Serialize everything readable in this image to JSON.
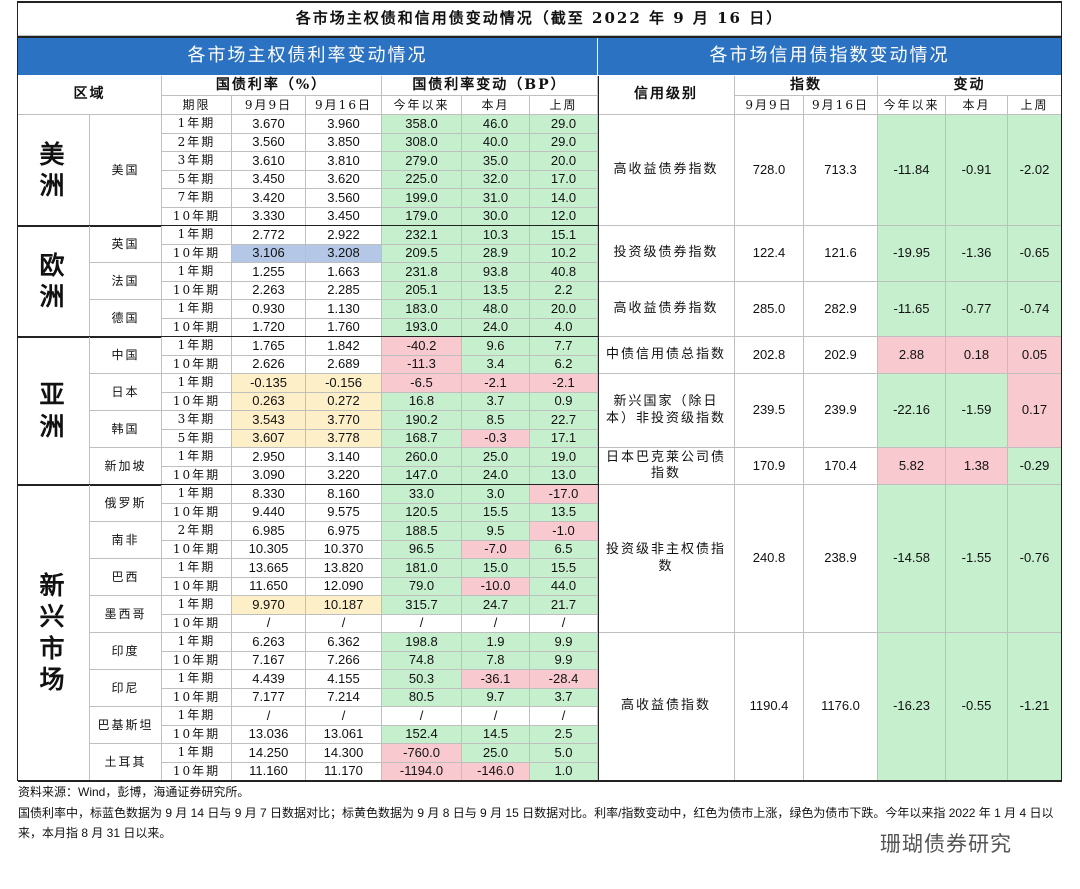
{
  "title": "各市场主权债和信用债变动情况（截至 2022 年 9 月 16 日）",
  "sovereign": {
    "header": "各市场主权债利率变动情况",
    "columns": {
      "region": "区域",
      "rate_group": "国债利率（%）",
      "change_group": "国债利率变动（BP）",
      "term": "期限",
      "d1": "9月9日",
      "d2": "9月16日",
      "ytd": "今年以来",
      "mtd": "本月",
      "wtd": "上周"
    },
    "regions": [
      {
        "name": "美洲",
        "countries": [
          {
            "name": "美国",
            "rows": [
              [
                "1年期",
                "3.670",
                "3.960",
                "358.0",
                "46.0",
                "29.0"
              ],
              [
                "2年期",
                "3.560",
                "3.850",
                "308.0",
                "40.0",
                "29.0"
              ],
              [
                "3年期",
                "3.610",
                "3.810",
                "279.0",
                "35.0",
                "20.0"
              ],
              [
                "5年期",
                "3.450",
                "3.620",
                "225.0",
                "32.0",
                "17.0"
              ],
              [
                "7年期",
                "3.420",
                "3.560",
                "199.0",
                "31.0",
                "14.0"
              ],
              [
                "10年期",
                "3.330",
                "3.450",
                "179.0",
                "30.0",
                "12.0"
              ]
            ]
          }
        ]
      },
      {
        "name": "欧洲",
        "countries": [
          {
            "name": "英国",
            "highlight": {
              "rows": [
                1
              ],
              "color": "#b4c7e7"
            },
            "rows": [
              [
                "1年期",
                "2.772",
                "2.922",
                "232.1",
                "10.3",
                "15.1"
              ],
              [
                "10年期",
                "3.106",
                "3.208",
                "209.5",
                "28.9",
                "10.2"
              ]
            ]
          },
          {
            "name": "法国",
            "rows": [
              [
                "1年期",
                "1.255",
                "1.663",
                "231.8",
                "93.8",
                "40.8"
              ],
              [
                "10年期",
                "2.263",
                "2.285",
                "205.1",
                "13.5",
                "2.2"
              ]
            ]
          },
          {
            "name": "德国",
            "rows": [
              [
                "1年期",
                "0.930",
                "1.130",
                "183.0",
                "48.0",
                "20.0"
              ],
              [
                "10年期",
                "1.720",
                "1.760",
                "193.0",
                "24.0",
                "4.0"
              ]
            ]
          }
        ]
      },
      {
        "name": "亚洲",
        "countries": [
          {
            "name": "中国",
            "rows": [
              [
                "1年期",
                "1.765",
                "1.842",
                "-40.2",
                "9.6",
                "7.7"
              ],
              [
                "10年期",
                "2.626",
                "2.689",
                "-11.3",
                "3.4",
                "6.2"
              ]
            ]
          },
          {
            "name": "日本",
            "highlight": {
              "rows": [
                0,
                1
              ],
              "color": "#fdefc8"
            },
            "rows": [
              [
                "1年期",
                "-0.135",
                "-0.156",
                "-6.5",
                "-2.1",
                "-2.1"
              ],
              [
                "10年期",
                "0.263",
                "0.272",
                "16.8",
                "3.7",
                "0.9"
              ]
            ]
          },
          {
            "name": "韩国",
            "highlight": {
              "rows": [
                0,
                1
              ],
              "color": "#fdefc8"
            },
            "rows": [
              [
                "3年期",
                "3.543",
                "3.770",
                "190.2",
                "8.5",
                "22.7"
              ],
              [
                "5年期",
                "3.607",
                "3.778",
                "168.7",
                "-0.3",
                "17.1"
              ]
            ]
          },
          {
            "name": "新加坡",
            "rows": [
              [
                "1年期",
                "2.950",
                "3.140",
                "260.0",
                "25.0",
                "19.0"
              ],
              [
                "10年期",
                "3.090",
                "3.220",
                "147.0",
                "24.0",
                "13.0"
              ]
            ]
          }
        ]
      },
      {
        "name": "新兴市场",
        "countries": [
          {
            "name": "俄罗斯",
            "rows": [
              [
                "1年期",
                "8.330",
                "8.160",
                "33.0",
                "3.0",
                "-17.0"
              ],
              [
                "10年期",
                "9.440",
                "9.575",
                "120.5",
                "15.5",
                "13.5"
              ]
            ]
          },
          {
            "name": "南非",
            "rows": [
              [
                "2年期",
                "6.985",
                "6.975",
                "188.5",
                "9.5",
                "-1.0"
              ],
              [
                "10年期",
                "10.305",
                "10.370",
                "96.5",
                "-7.0",
                "6.5"
              ]
            ]
          },
          {
            "name": "巴西",
            "rows": [
              [
                "1年期",
                "13.665",
                "13.820",
                "181.0",
                "15.0",
                "15.5"
              ],
              [
                "10年期",
                "11.650",
                "12.090",
                "79.0",
                "-10.0",
                "44.0"
              ]
            ]
          },
          {
            "name": "墨西哥",
            "highlight": {
              "rows": [
                0
              ],
              "color": "#fdefc8"
            },
            "rows": [
              [
                "1年期",
                "9.970",
                "10.187",
                "315.7",
                "24.7",
                "21.7"
              ],
              [
                "10年期",
                "/",
                "/",
                "/",
                "/",
                "/"
              ]
            ]
          },
          {
            "name": "印度",
            "rows": [
              [
                "1年期",
                "6.263",
                "6.362",
                "198.8",
                "1.9",
                "9.9"
              ],
              [
                "10年期",
                "7.167",
                "7.266",
                "74.8",
                "7.8",
                "9.9"
              ]
            ]
          },
          {
            "name": "印尼",
            "rows": [
              [
                "1年期",
                "4.439",
                "4.155",
                "50.3",
                "-36.1",
                "-28.4"
              ],
              [
                "10年期",
                "7.177",
                "7.214",
                "80.5",
                "9.7",
                "3.7"
              ]
            ]
          },
          {
            "name": "巴基斯坦",
            "rows": [
              [
                "1年期",
                "/",
                "/",
                "/",
                "/",
                "/"
              ],
              [
                "10年期",
                "13.036",
                "13.061",
                "152.4",
                "14.5",
                "2.5"
              ]
            ]
          },
          {
            "name": "土耳其",
            "rows": [
              [
                "1年期",
                "14.250",
                "14.300",
                "-760.0",
                "25.0",
                "5.0"
              ],
              [
                "10年期",
                "11.160",
                "11.170",
                "-1194.0",
                "-146.0",
                "1.0"
              ]
            ]
          }
        ]
      }
    ]
  },
  "credit": {
    "header": "各市场信用债指数变动情况",
    "columns": {
      "grade": "信用级别",
      "index_group": "指数",
      "change_group": "变动",
      "d1": "9月9日",
      "d2": "9月16日",
      "ytd": "今年以来",
      "mtd": "本月",
      "wtd": "上周"
    },
    "rows": [
      [
        "高收益债券指数",
        "728.0",
        "713.3",
        "-11.84",
        "-0.91",
        "-2.02"
      ],
      [
        "投资级债券指数",
        "122.4",
        "121.6",
        "-19.95",
        "-1.36",
        "-0.65"
      ],
      [
        "高收益债券指数",
        "285.0",
        "282.9",
        "-11.65",
        "-0.77",
        "-0.74"
      ],
      [
        "中债信用债总指数",
        "202.8",
        "202.9",
        "2.88",
        "0.18",
        "0.05"
      ],
      [
        "新兴国家（除日本）非投资级指数",
        "239.5",
        "239.9",
        "-22.16",
        "-1.59",
        "0.17"
      ],
      [
        "日本巴克莱公司债指数",
        "170.9",
        "170.4",
        "5.82",
        "1.38",
        "-0.29"
      ],
      [
        "投资级非主权债指数",
        "240.8",
        "238.9",
        "-14.58",
        "-1.55",
        "-0.76"
      ],
      [
        "高收益债指数",
        "1190.4",
        "1176.0",
        "-16.23",
        "-0.55",
        "-1.21"
      ]
    ]
  },
  "footer": {
    "source": "资料来源：Wind，彭博，海通证券研究所。",
    "note": "国债利率中，标蓝色数据为 9 月 14 日与 9 月 7 日数据对比；标黄色数据为 9 月 8 日与 9 月 15 日数据对比。利率/指数变动中，红色为债市上涨，绿色为债市下跌。今年以来指 2022 年 1 月 4 日以来，本月指 8 月 31 日以来。",
    "watermark": "珊瑚债券研究"
  }
}
